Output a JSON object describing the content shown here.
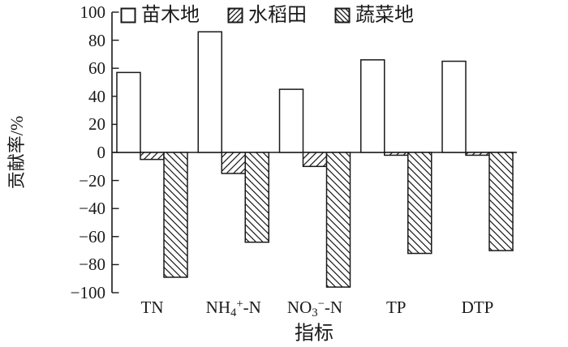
{
  "figure": {
    "background": "#ffffff",
    "line_color": "#1a1a1a"
  },
  "chart_data": {
    "type": "bar",
    "title": "",
    "xlabel": "指标",
    "ylabel": "贡献率/%",
    "ylim": [
      -100,
      100
    ],
    "ytick_step": 20,
    "yticks": [
      100,
      80,
      60,
      40,
      20,
      0,
      -20,
      -40,
      -60,
      -80,
      -100
    ],
    "grid": false,
    "legend_position": "top-inside",
    "categories": [
      {
        "label": "TN",
        "parts": [
          {
            "text": "TN",
            "pos": "normal"
          }
        ]
      },
      {
        "label": "NH4+-N",
        "parts": [
          {
            "text": "NH",
            "pos": "normal"
          },
          {
            "text": "4",
            "pos": "sub"
          },
          {
            "text": "+",
            "pos": "sup"
          },
          {
            "text": "-N",
            "pos": "normal"
          }
        ]
      },
      {
        "label": "NO3−-N",
        "parts": [
          {
            "text": "NO",
            "pos": "normal"
          },
          {
            "text": "3",
            "pos": "sub"
          },
          {
            "text": "−",
            "pos": "sup"
          },
          {
            "text": "-N",
            "pos": "normal"
          }
        ]
      },
      {
        "label": "TP",
        "parts": [
          {
            "text": "TP",
            "pos": "normal"
          }
        ]
      },
      {
        "label": "DTP",
        "parts": [
          {
            "text": "DTP",
            "pos": "normal"
          }
        ]
      }
    ],
    "series": [
      {
        "name": "苗木地",
        "slug": "nursery-land",
        "fill": "blank",
        "values": [
          57,
          86,
          45,
          66,
          65
        ]
      },
      {
        "name": "水稻田",
        "slug": "paddy-field",
        "fill": "hatch-forward",
        "values": [
          -5,
          -15,
          -10,
          -2,
          -2
        ]
      },
      {
        "name": "蔬菜地",
        "slug": "vegetable-plot",
        "fill": "hatch-backward",
        "values": [
          -89,
          -64,
          -96,
          -72,
          -70
        ]
      }
    ]
  }
}
